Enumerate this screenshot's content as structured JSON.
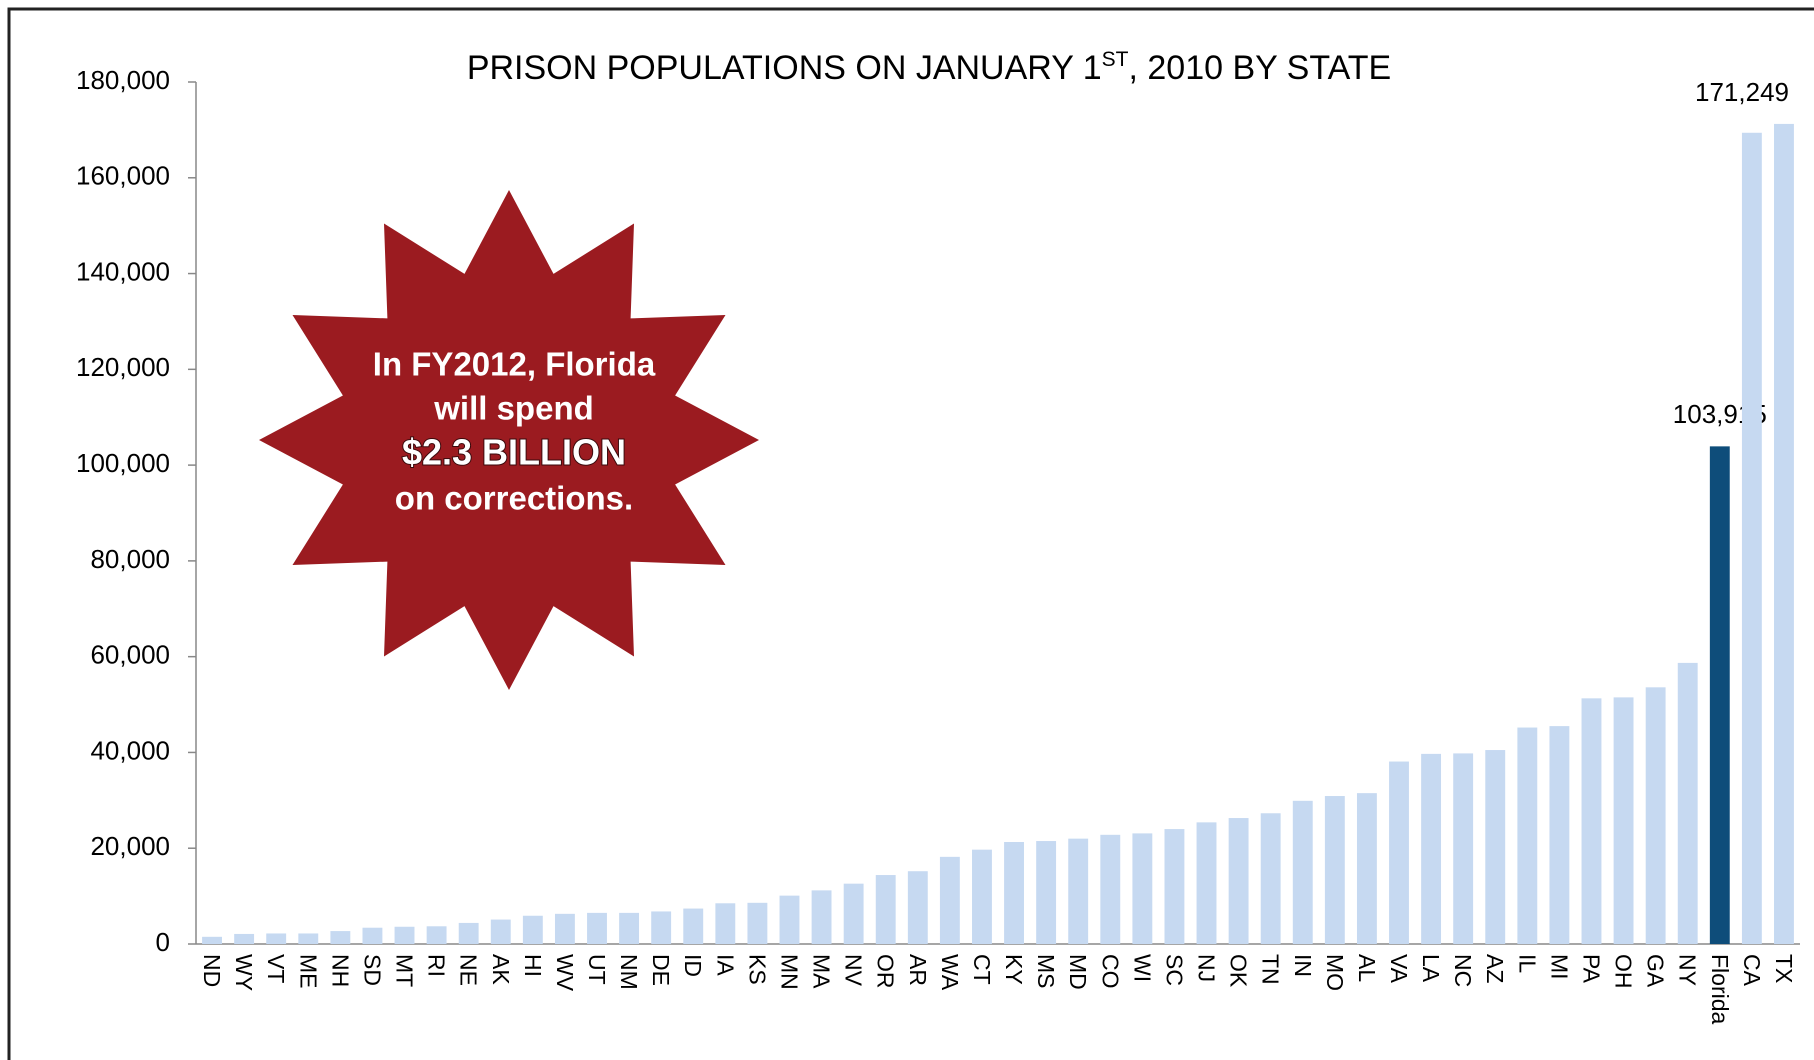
{
  "chart_data": {
    "type": "bar",
    "title": {
      "main": "PRISON POPULATIONS ON JANUARY 1",
      "sup": "ST",
      "rest": ", 2010 BY STATE"
    },
    "annotation": {
      "lines": [
        "In FY2012, Florida",
        "will spend",
        "$2.3 BILLION",
        "on corrections."
      ]
    },
    "categories": [
      "ND",
      "WY",
      "VT",
      "ME",
      "NH",
      "SD",
      "MT",
      "RI",
      "NE",
      "AK",
      "HI",
      "WV",
      "UT",
      "NM",
      "DE",
      "ID",
      "IA",
      "KS",
      "MN",
      "MA",
      "NV",
      "OR",
      "AR",
      "WA",
      "CT",
      "KY",
      "MS",
      "MD",
      "CO",
      "WI",
      "SC",
      "NJ",
      "OK",
      "TN",
      "IN",
      "MO",
      "AL",
      "VA",
      "LA",
      "NC",
      "AZ",
      "IL",
      "MI",
      "PA",
      "OH",
      "GA",
      "NY",
      "Florida",
      "CA",
      "TX"
    ],
    "values": [
      1500,
      2100,
      2200,
      2200,
      2700,
      3400,
      3600,
      3700,
      4400,
      5100,
      5900,
      6300,
      6500,
      6500,
      6800,
      7400,
      8500,
      8600,
      10100,
      11200,
      12600,
      14400,
      15200,
      18200,
      19700,
      21300,
      21500,
      22000,
      22800,
      23100,
      24000,
      25400,
      26300,
      27300,
      29900,
      30900,
      31500,
      38100,
      39700,
      39800,
      40500,
      45200,
      45500,
      51300,
      51500,
      53600,
      58700,
      103915,
      169400,
      171249
    ],
    "value_labels": [
      null,
      null,
      null,
      null,
      null,
      null,
      null,
      null,
      null,
      null,
      null,
      null,
      null,
      null,
      null,
      null,
      null,
      null,
      null,
      null,
      null,
      null,
      null,
      null,
      null,
      null,
      null,
      null,
      null,
      null,
      null,
      null,
      null,
      null,
      null,
      null,
      null,
      null,
      null,
      null,
      null,
      null,
      null,
      null,
      null,
      null,
      null,
      "103,915",
      null,
      "171,249"
    ],
    "colors": [
      "#c6d9f1",
      "#c6d9f1",
      "#c6d9f1",
      "#c6d9f1",
      "#c6d9f1",
      "#c6d9f1",
      "#c6d9f1",
      "#c6d9f1",
      "#c6d9f1",
      "#c6d9f1",
      "#c6d9f1",
      "#c6d9f1",
      "#c6d9f1",
      "#c6d9f1",
      "#c6d9f1",
      "#c6d9f1",
      "#c6d9f1",
      "#c6d9f1",
      "#c6d9f1",
      "#c6d9f1",
      "#c6d9f1",
      "#c6d9f1",
      "#c6d9f1",
      "#c6d9f1",
      "#c6d9f1",
      "#c6d9f1",
      "#c6d9f1",
      "#c6d9f1",
      "#c6d9f1",
      "#c6d9f1",
      "#c6d9f1",
      "#c6d9f1",
      "#c6d9f1",
      "#c6d9f1",
      "#c6d9f1",
      "#c6d9f1",
      "#c6d9f1",
      "#c6d9f1",
      "#c6d9f1",
      "#c6d9f1",
      "#c6d9f1",
      "#c6d9f1",
      "#c6d9f1",
      "#c6d9f1",
      "#c6d9f1",
      "#c6d9f1",
      "#c6d9f1",
      "#0e4d7a",
      "#c6d9f1",
      "#c6d9f1"
    ],
    "ylim": [
      0,
      180000
    ],
    "yticks": [
      0,
      {
        "value": 20000,
        "label": "20,000"
      },
      {
        "value": 40000,
        "label": "40,000"
      },
      {
        "value": 60000,
        "label": "60,000"
      },
      {
        "value": 80000,
        "label": "80,000"
      },
      {
        "value": 100000,
        "label": "100,000"
      },
      {
        "value": 120000,
        "label": "120,000"
      },
      {
        "value": 140000,
        "label": "140,000"
      },
      {
        "value": 160000,
        "label": "160,000"
      },
      {
        "value": 180000,
        "label": "180,000"
      }
    ],
    "grid": false
  }
}
